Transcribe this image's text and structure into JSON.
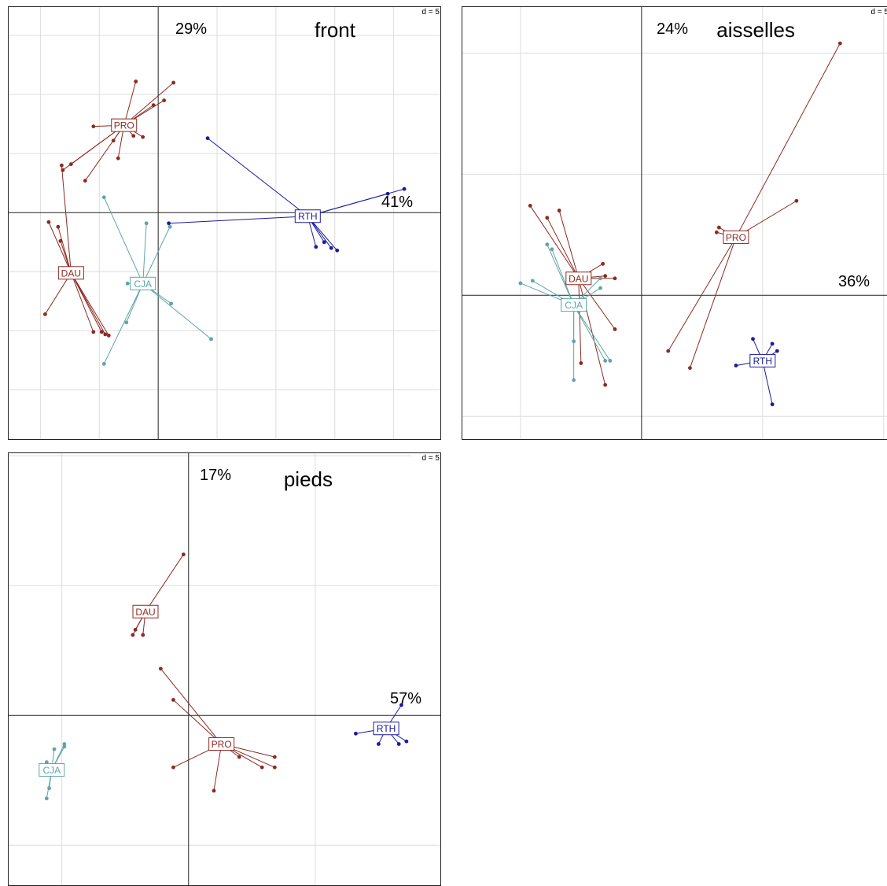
{
  "colors": {
    "DAU": "#8B2A22",
    "PRO": "#8B2A22",
    "CJA": "#5FA5A5",
    "RTH": "#1A1A9E",
    "grid": "#DDDDDD",
    "axis": "#222222"
  },
  "chart_data": [
    {
      "type": "scatter",
      "title": "front",
      "grid_label": "d = 5",
      "x_inertia": "41%",
      "y_inertia": "29%",
      "xlim": [
        -12.7,
        24.1
      ],
      "ylim": [
        -19.3,
        17.4
      ],
      "groups": [
        {
          "name": "PRO",
          "color": "#8B2A22",
          "points": [
            [
              -1.9,
              11.1
            ],
            [
              1.3,
              11.0
            ],
            [
              0.5,
              9.5
            ],
            [
              -0.4,
              9.1
            ],
            [
              -5.5,
              7.3
            ],
            [
              -2.1,
              6.5
            ],
            [
              -1.3,
              6.4
            ],
            [
              -3.8,
              6.1
            ],
            [
              -7.4,
              4.1
            ],
            [
              -3.4,
              4.6
            ],
            [
              -8.1,
              3.6
            ],
            [
              -6.2,
              2.7
            ]
          ]
        },
        {
          "name": "DAU",
          "color": "#8B2A22",
          "points": [
            [
              -8.2,
              4.0
            ],
            [
              -9.3,
              -0.8
            ],
            [
              -8.5,
              -1.2
            ],
            [
              -8.3,
              -2.4
            ],
            [
              -9.6,
              -8.6
            ],
            [
              -5.5,
              -10.1
            ],
            [
              -4.5,
              -10.3
            ],
            [
              -4.2,
              -10.4
            ],
            [
              -4.8,
              -10.1
            ]
          ]
        },
        {
          "name": "CJA",
          "color": "#5FA5A5",
          "points": [
            [
              -4.6,
              1.3
            ],
            [
              -1.0,
              -0.9
            ],
            [
              1.0,
              -1.2
            ],
            [
              -2.6,
              -6.0
            ],
            [
              1.1,
              -7.7
            ],
            [
              4.5,
              -10.7
            ],
            [
              -2.7,
              -9.3
            ],
            [
              -4.6,
              -12.8
            ]
          ]
        },
        {
          "name": "RTH",
          "color": "#1A1A9E",
          "points": [
            [
              4.2,
              6.3
            ],
            [
              19.5,
              1.6
            ],
            [
              20.9,
              2.0
            ],
            [
              0.9,
              -0.9
            ],
            [
              13.4,
              -2.9
            ],
            [
              14.1,
              -2.5
            ],
            [
              14.7,
              -3.0
            ],
            [
              15.2,
              -3.2
            ]
          ]
        }
      ],
      "centroids": [
        {
          "name": "PRO",
          "x": -2.9,
          "y": 7.4
        },
        {
          "name": "DAU",
          "x": -7.4,
          "y": -5.1
        },
        {
          "name": "CJA",
          "x": -1.3,
          "y": -6.0
        },
        {
          "name": "RTH",
          "x": 12.7,
          "y": -0.3
        }
      ]
    },
    {
      "type": "scatter",
      "title": "aisselles",
      "grid_label": "d = 5",
      "x_inertia": "36%",
      "y_inertia": "24%",
      "xlim": [
        -7.4,
        10.3
      ],
      "ylim": [
        -6.0,
        11.9
      ],
      "groups": [
        {
          "name": "DAU",
          "color": "#8B2A22",
          "points": [
            [
              -4.6,
              3.7
            ],
            [
              -3.9,
              3.2
            ],
            [
              -3.4,
              3.5
            ],
            [
              -1.6,
              1.3
            ],
            [
              -1.5,
              0.8
            ],
            [
              -1.1,
              0.7
            ],
            [
              -1.1,
              -1.4
            ],
            [
              -2.5,
              -2.8
            ],
            [
              -1.5,
              -3.7
            ]
          ]
        },
        {
          "name": "CJA",
          "color": "#5FA5A5",
          "points": [
            [
              -3.9,
              2.1
            ],
            [
              -3.7,
              1.9
            ],
            [
              -4.5,
              0.6
            ],
            [
              -5.0,
              0.5
            ],
            [
              -1.7,
              0.7
            ],
            [
              -1.7,
              0.3
            ],
            [
              -2.8,
              -1.9
            ],
            [
              -2.8,
              -3.5
            ],
            [
              -1.5,
              -2.7
            ],
            [
              -1.3,
              -2.7
            ]
          ]
        },
        {
          "name": "PRO",
          "color": "#8B2A22",
          "points": [
            [
              8.2,
              10.4
            ],
            [
              6.4,
              3.9
            ],
            [
              3.2,
              2.8
            ],
            [
              3.1,
              2.6
            ],
            [
              1.1,
              -2.3
            ],
            [
              2.0,
              -3.0
            ]
          ]
        },
        {
          "name": "RTH",
          "color": "#1A1A9E",
          "points": [
            [
              4.6,
              -1.8
            ],
            [
              5.4,
              -2.0
            ],
            [
              5.6,
              -2.3
            ],
            [
              5.2,
              -2.6
            ],
            [
              3.9,
              -2.9
            ],
            [
              5.4,
              -4.5
            ]
          ]
        }
      ],
      "centroids": [
        {
          "name": "DAU",
          "x": -2.6,
          "y": 0.7
        },
        {
          "name": "CJA",
          "x": -2.8,
          "y": -0.4
        },
        {
          "name": "PRO",
          "x": 3.9,
          "y": 2.4
        },
        {
          "name": "RTH",
          "x": 5.0,
          "y": -2.7
        }
      ]
    },
    {
      "type": "scatter",
      "title": "pieds",
      "grid_label": "d = 5",
      "x_inertia": "57%",
      "y_inertia": "17%",
      "xlim": [
        -7.1,
        10.0
      ],
      "ylim": [
        -6.6,
        10.1
      ],
      "groups": [
        {
          "name": "DAU",
          "color": "#8B2A22",
          "points": [
            [
              -0.2,
              6.2
            ],
            [
              -2.2,
              3.1
            ],
            [
              -1.8,
              3.1
            ],
            [
              -2.1,
              3.3
            ]
          ]
        },
        {
          "name": "PRO",
          "color": "#8B2A22",
          "points": [
            [
              -1.1,
              1.8
            ],
            [
              -0.6,
              0.6
            ],
            [
              3.4,
              -1.6
            ],
            [
              2.0,
              -1.6
            ],
            [
              3.4,
              -2.0
            ],
            [
              2.9,
              -2.0
            ],
            [
              -0.6,
              -2.0
            ],
            [
              1.0,
              -2.9
            ]
          ]
        },
        {
          "name": "CJA",
          "color": "#5FA5A5",
          "points": [
            [
              -4.9,
              -1.1
            ],
            [
              -4.9,
              -1.2
            ],
            [
              -5.3,
              -1.3
            ],
            [
              -5.6,
              -1.8
            ],
            [
              -5.5,
              -2.8
            ],
            [
              -5.6,
              -3.2
            ]
          ]
        },
        {
          "name": "RTH",
          "color": "#1A1A9E",
          "points": [
            [
              8.4,
              0.4
            ],
            [
              7.9,
              -0.5
            ],
            [
              6.6,
              -0.7
            ],
            [
              8.6,
              -1.0
            ],
            [
              7.5,
              -1.1
            ],
            [
              8.3,
              -1.1
            ]
          ]
        }
      ],
      "centroids": [
        {
          "name": "DAU",
          "x": -1.7,
          "y": 4.0
        },
        {
          "name": "PRO",
          "x": 1.3,
          "y": -1.1
        },
        {
          "name": "CJA",
          "x": -5.4,
          "y": -2.1
        },
        {
          "name": "RTH",
          "x": 7.8,
          "y": -0.5
        }
      ]
    }
  ]
}
